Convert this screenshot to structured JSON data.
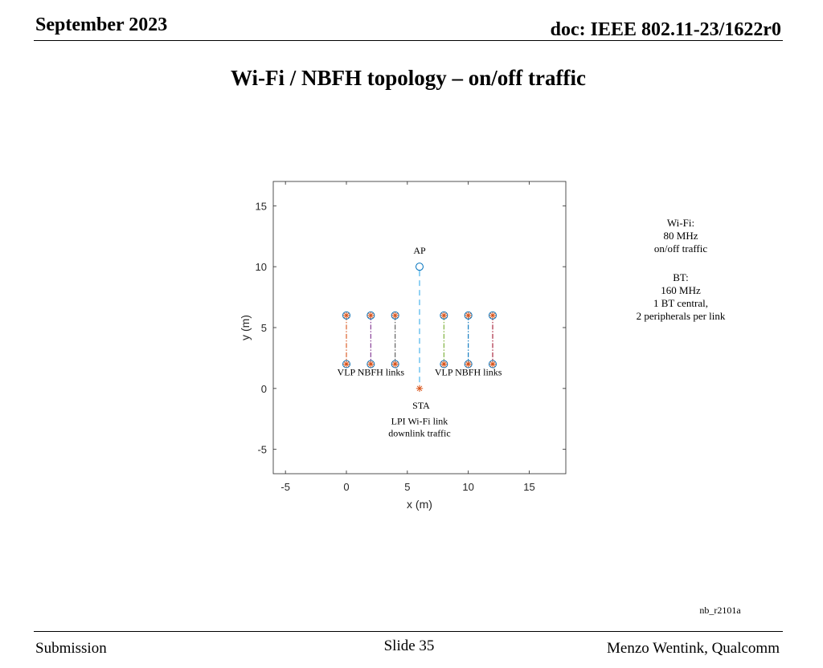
{
  "header": {
    "date": "September 2023",
    "doc": "doc: IEEE 802.11-23/1622r0"
  },
  "slide": {
    "title": "Wi-Fi / NBFH topology – on/off traffic"
  },
  "notes": {
    "wifi_title": "Wi-Fi:",
    "wifi_bw": "80 MHz",
    "wifi_traffic": "on/off traffic",
    "bt_title": "BT:",
    "bt_bw": "160 MHz",
    "bt_central": "1 BT central,",
    "bt_peripherals": "2 peripherals per link"
  },
  "figure_tag": "nb_r2101a",
  "footer": {
    "left": "Submission",
    "center": "Slide 35",
    "right": "Menzo Wentink, Qualcomm"
  },
  "chart_data": {
    "type": "scatter",
    "title": "",
    "xlabel": "x (m)",
    "ylabel": "y (m)",
    "xlim": [
      -6,
      18
    ],
    "ylim": [
      -7,
      17
    ],
    "xticks": [
      -5,
      0,
      5,
      10,
      15
    ],
    "yticks": [
      -5,
      0,
      5,
      10,
      15
    ],
    "grid": false,
    "wifi": {
      "ap": {
        "x": 6,
        "y": 10,
        "label": "AP"
      },
      "sta": {
        "x": 6,
        "y": 0,
        "label": "STA"
      },
      "link_color": "#6fc3f0"
    },
    "nbfh_links": [
      {
        "x": 0,
        "central_y": 6,
        "peripheral_y": 2,
        "color": "#d95319"
      },
      {
        "x": 2,
        "central_y": 6,
        "peripheral_y": 2,
        "color": "#7e2f8e"
      },
      {
        "x": 4,
        "central_y": 6,
        "peripheral_y": 2,
        "color": "#555555"
      },
      {
        "x": 8,
        "central_y": 6,
        "peripheral_y": 2,
        "color": "#77ac30"
      },
      {
        "x": 10,
        "central_y": 6,
        "peripheral_y": 2,
        "color": "#0072bd"
      },
      {
        "x": 12,
        "central_y": 6,
        "peripheral_y": 2,
        "color": "#a2142f"
      }
    ],
    "circle_color": "#0072bd",
    "star_color": "#d95319",
    "annotations": [
      {
        "text": "VLP NBFH links",
        "x": 2,
        "y": 1
      },
      {
        "text": "VLP NBFH links",
        "x": 10,
        "y": 1
      },
      {
        "text": "LPI Wi-Fi link",
        "x": 6,
        "y": -3
      },
      {
        "text": "downlink traffic",
        "x": 6,
        "y": -4
      }
    ]
  }
}
